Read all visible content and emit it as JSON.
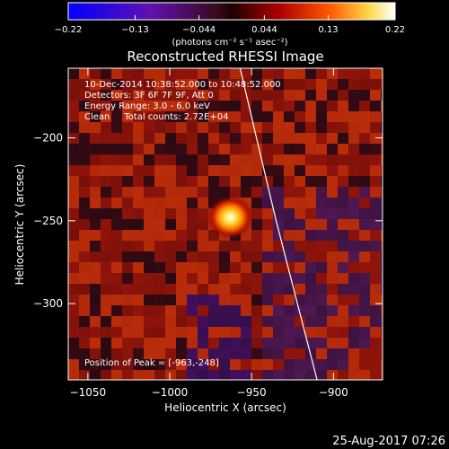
{
  "chart_data": {
    "type": "heatmap",
    "title": "Reconstructed RHESSI Image",
    "xlabel": "Heliocentric X (arcsec)",
    "ylabel": "Heliocentric Y (arcsec)",
    "xlim": [
      -1062,
      -870
    ],
    "ylim": [
      -346,
      -158
    ],
    "xticks": [
      -1050,
      -1000,
      -950,
      -900
    ],
    "xtick_labels": [
      "−1050",
      "−1000",
      "−950",
      "−900"
    ],
    "yticks": [
      -200,
      -250,
      -300
    ],
    "ytick_labels": [
      "−200",
      "−250",
      "−300"
    ],
    "colorbar": {
      "min": -0.22,
      "max": 0.22,
      "ticks": [
        -0.22,
        -0.13,
        -0.044,
        0.044,
        0.13,
        0.22
      ],
      "tick_labels": [
        "−0.22",
        "−0.13",
        "−0.044",
        "0.044",
        "0.13",
        "0.22"
      ],
      "units_label": "(photons cm⁻² s⁻¹ asec⁻²)",
      "colormap": "blue-purple-red-yellow-white"
    },
    "annotations": [
      "10-Dec-2014 10:38:52.000 to 10:48:52.000",
      "Detectors: 3F 6F 7F 9F, Att 0",
      "Energy Range: 3.0 - 6.0 keV",
      "Clean     Total counts: 2.72E+04"
    ],
    "peak": {
      "x": -963,
      "y": -248,
      "label": "Position of Peak = [-963,-248]"
    },
    "limb_curve": [
      [
        -957,
        -158
      ],
      [
        -947,
        -200
      ],
      [
        -935,
        -250
      ],
      [
        -922,
        -300
      ],
      [
        -910,
        -346
      ]
    ]
  },
  "footer": {
    "date": "25-Aug-2017 07:26"
  },
  "colors": {
    "background": "#000000",
    "foreground": "#ffffff",
    "limb": "#ffffff"
  }
}
